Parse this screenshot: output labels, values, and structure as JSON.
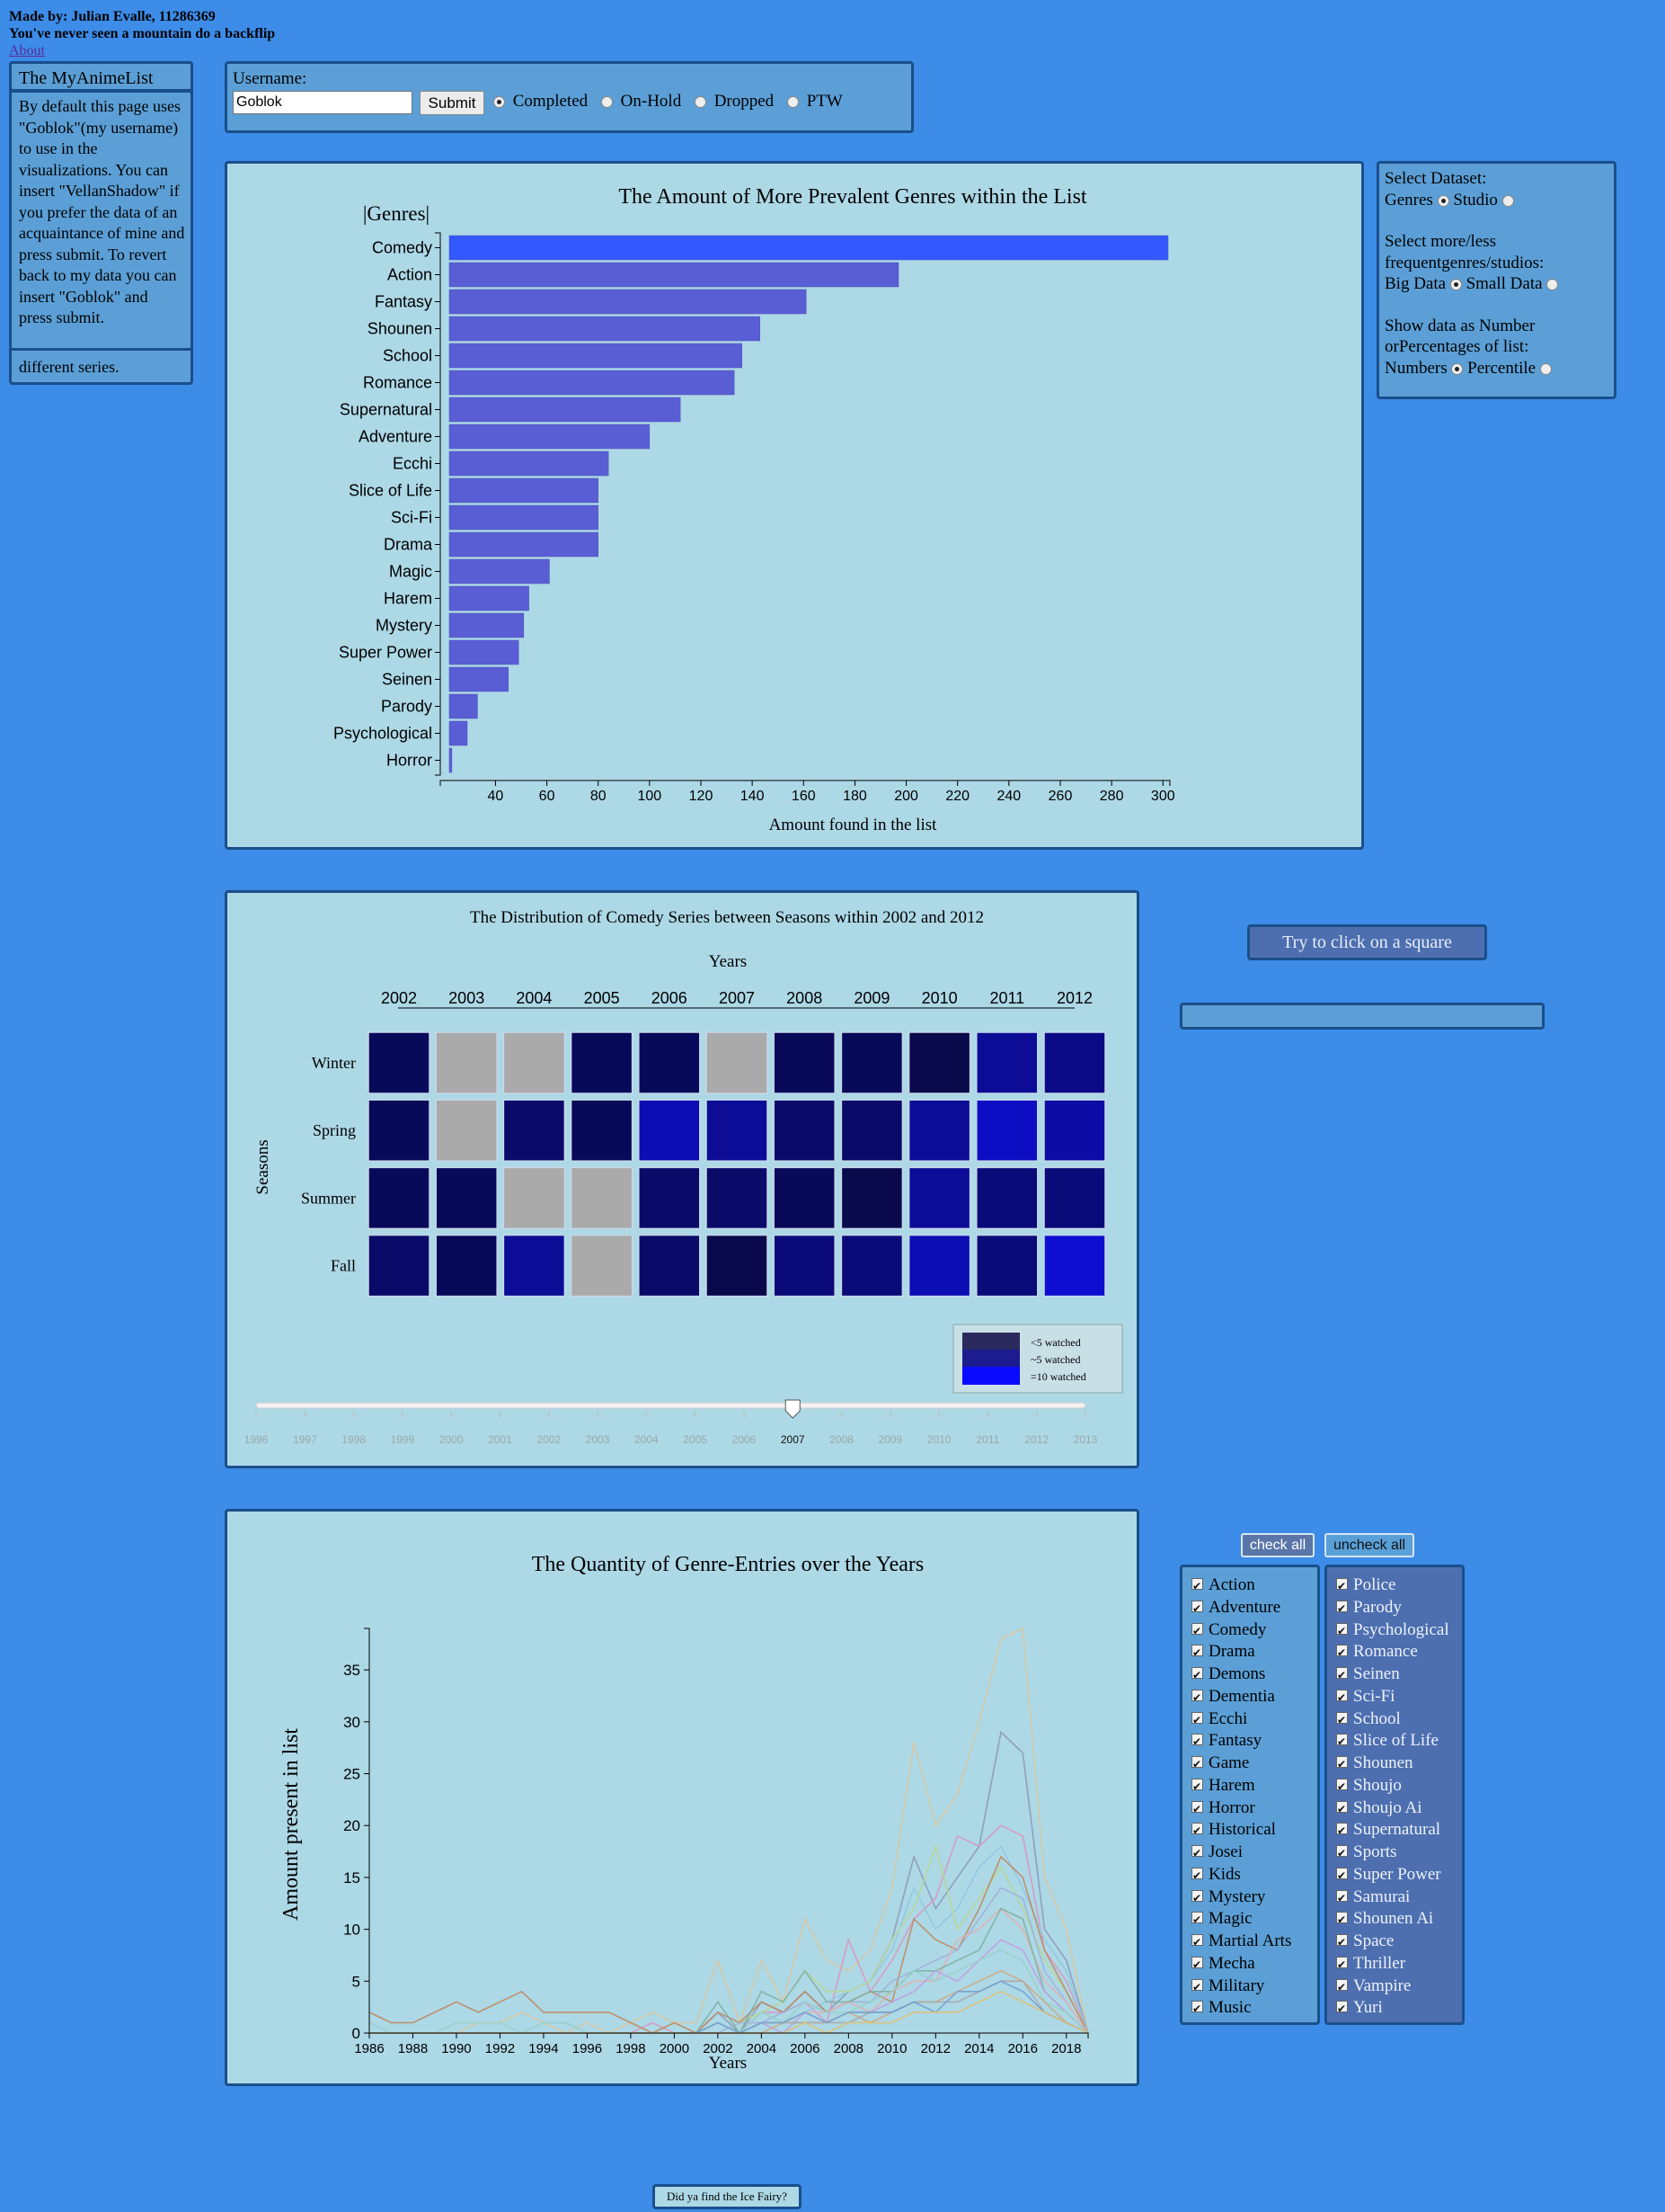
{
  "header": {
    "made_by": "Made by: Julian Evalle, 11286369",
    "tagline": "You've never seen a mountain do a backflip",
    "about_link": "About"
  },
  "about_panel": {
    "title": "The MyAnimeList",
    "text": "By default this page uses \"Goblok\"(my username) to use in the visualizations. You can insert \"VellanShadow\" if you prefer the data of an acquaintance of mine and press submit. To revert back to my data you can insert \"Goblok\" and press submit.",
    "tail": "different series."
  },
  "user_form": {
    "label": "Username:",
    "value": "Goblok",
    "submit": "Submit",
    "options": [
      {
        "label": "Completed",
        "checked": true
      },
      {
        "label": "On-Hold",
        "checked": false
      },
      {
        "label": "Dropped",
        "checked": false
      },
      {
        "label": "PTW",
        "checked": false
      }
    ]
  },
  "settings": {
    "dataset_label": "Select Dataset:",
    "genres": "Genres",
    "studio": "Studio",
    "freq_label_1": "Select more/less",
    "freq_label_2": "frequentgenres/studios:",
    "big": "Big Data",
    "small": "Small Data",
    "show_label_1": "Show data as Number",
    "show_label_2": "orPercentages of list:",
    "numbers": "Numbers",
    "percentile": "Percentile"
  },
  "bar_chart": {
    "chart_data": {
      "type": "bar",
      "orientation": "horizontal",
      "title": "The Amount of More Prevalent Genres within the List",
      "ylabel": "|Genres|",
      "xlabel": "Amount found in the list",
      "categories": [
        "Comedy",
        "Action",
        "Fantasy",
        "Shounen",
        "School",
        "Romance",
        "Supernatural",
        "Adventure",
        "Ecchi",
        "Slice of Life",
        "Sci-Fi",
        "Drama",
        "Magic",
        "Harem",
        "Mystery",
        "Super Power",
        "Seinen",
        "Parody",
        "Psychological",
        "Horror"
      ],
      "values": [
        302,
        197,
        161,
        143,
        136,
        133,
        112,
        100,
        84,
        80,
        80,
        80,
        61,
        53,
        51,
        49,
        45,
        33,
        29,
        23
      ],
      "xlim": [
        22,
        302
      ],
      "xticks": [
        40,
        60,
        80,
        100,
        120,
        140,
        160,
        180,
        200,
        220,
        240,
        260,
        280,
        300
      ],
      "highlight_color": "#3358ff",
      "bar_color": "#5a5ed4"
    }
  },
  "heatmap": {
    "chart_data": {
      "type": "heatmap",
      "title": "The Distribution of Comedy Series between Seasons within 2002 and 2012",
      "xlabel": "Years",
      "ylabel": "Seasons",
      "x": [
        "2002",
        "2003",
        "2004",
        "2005",
        "2006",
        "2007",
        "2008",
        "2009",
        "2010",
        "2011",
        "2012"
      ],
      "y": [
        "Winter",
        "Spring",
        "Summer",
        "Fall"
      ],
      "values": [
        [
          2,
          null,
          null,
          2,
          2,
          null,
          2,
          2,
          1,
          6,
          5
        ],
        [
          2,
          null,
          3,
          2,
          8,
          6,
          3,
          3,
          6,
          9,
          7
        ],
        [
          2,
          2,
          null,
          null,
          3,
          3,
          2,
          1,
          6,
          4,
          4
        ],
        [
          3,
          2,
          6,
          null,
          3,
          1,
          4,
          4,
          8,
          4,
          10
        ]
      ],
      "missing_color": "#aaaaaa",
      "legend": [
        "<5 watched",
        "~5 watched",
        "=10 watched"
      ],
      "legend_colors": [
        "#2a2a5e",
        "#1c1c90",
        "#0a0aff"
      ]
    },
    "slider": {
      "years": [
        "1996",
        "1997",
        "1998",
        "1999",
        "2000",
        "2001",
        "2002",
        "2003",
        "2004",
        "2005",
        "2006",
        "2007",
        "2008",
        "2009",
        "2010",
        "2011",
        "2012",
        "2013"
      ],
      "selected": "2007"
    },
    "click_button": "Try to click on a square",
    "info_box": ""
  },
  "line_chart": {
    "chart_data": {
      "type": "line",
      "title": "The Quantity of Genre-Entries over the Years",
      "xlabel": "Years",
      "ylabel": "Amount present in list",
      "x": [
        1986,
        1987,
        1988,
        1989,
        1990,
        1991,
        1992,
        1993,
        1994,
        1995,
        1996,
        1997,
        1998,
        1999,
        2000,
        2001,
        2002,
        2003,
        2004,
        2005,
        2006,
        2007,
        2008,
        2009,
        2010,
        2011,
        2012,
        2013,
        2014,
        2015,
        2016,
        2017,
        2018,
        2019
      ],
      "xlim": [
        1986,
        2019
      ],
      "ylim": [
        0,
        39
      ],
      "xticks": [
        1986,
        1988,
        1990,
        1992,
        1994,
        1996,
        1998,
        2000,
        2002,
        2004,
        2006,
        2008,
        2010,
        2012,
        2014,
        2016,
        2018
      ],
      "yticks": [
        0,
        5,
        10,
        15,
        20,
        25,
        30,
        35
      ],
      "series": [
        {
          "color": "#d9c8a0",
          "values": [
            0,
            0,
            0,
            0,
            0,
            1,
            1,
            2,
            1,
            0,
            1,
            0,
            1,
            2,
            1,
            1,
            7,
            1,
            7,
            3,
            11,
            7,
            6,
            8,
            14,
            28,
            20,
            23,
            30,
            38,
            39,
            15,
            10,
            0
          ]
        },
        {
          "color": "#8c9ab8",
          "values": [
            0,
            0,
            0,
            0,
            0,
            0,
            0,
            0,
            0,
            0,
            0,
            0,
            0,
            0,
            0,
            0,
            2,
            0,
            3,
            2,
            4,
            2,
            4,
            5,
            9,
            17,
            12,
            15,
            18,
            29,
            27,
            10,
            7,
            0
          ]
        },
        {
          "color": "#d898c0",
          "values": [
            0,
            0,
            0,
            0,
            0,
            0,
            0,
            0,
            0,
            0,
            0,
            0,
            0,
            1,
            0,
            0,
            1,
            0,
            2,
            2,
            3,
            1,
            9,
            4,
            7,
            11,
            13,
            19,
            18,
            20,
            19,
            8,
            5,
            0
          ]
        },
        {
          "color": "#90c8e0",
          "values": [
            0,
            0,
            0,
            0,
            0,
            0,
            0,
            0,
            1,
            1,
            0,
            0,
            0,
            0,
            0,
            0,
            1,
            0,
            2,
            1,
            2,
            3,
            4,
            5,
            8,
            14,
            10,
            12,
            16,
            18,
            14,
            9,
            6,
            0
          ]
        },
        {
          "color": "#b8d890",
          "values": [
            0,
            0,
            0,
            0,
            0,
            0,
            0,
            0,
            0,
            0,
            0,
            0,
            0,
            0,
            1,
            0,
            0,
            1,
            2,
            3,
            6,
            4,
            4,
            5,
            9,
            12,
            18,
            10,
            13,
            16,
            12,
            7,
            4,
            0
          ]
        },
        {
          "color": "#c08860",
          "values": [
            2,
            1,
            1,
            2,
            3,
            2,
            3,
            4,
            2,
            2,
            2,
            2,
            1,
            0,
            1,
            0,
            2,
            1,
            3,
            2,
            4,
            2,
            3,
            4,
            3,
            11,
            9,
            8,
            12,
            17,
            15,
            8,
            4,
            0
          ]
        },
        {
          "color": "#a0b0d8",
          "values": [
            0,
            0,
            0,
            0,
            0,
            0,
            0,
            0,
            0,
            0,
            0,
            0,
            0,
            0,
            0,
            0,
            0,
            1,
            1,
            2,
            3,
            2,
            3,
            3,
            5,
            6,
            7,
            8,
            11,
            14,
            13,
            6,
            3,
            0
          ]
        },
        {
          "color": "#e0b0b0",
          "values": [
            0,
            0,
            0,
            0,
            0,
            0,
            0,
            0,
            0,
            0,
            0,
            0,
            0,
            0,
            0,
            0,
            1,
            0,
            1,
            1,
            2,
            2,
            3,
            2,
            4,
            5,
            5,
            9,
            10,
            12,
            10,
            5,
            3,
            0
          ]
        },
        {
          "color": "#80b0a0",
          "values": [
            0,
            0,
            0,
            0,
            0,
            0,
            0,
            0,
            0,
            0,
            0,
            0,
            0,
            0,
            0,
            0,
            3,
            0,
            4,
            3,
            6,
            3,
            3,
            4,
            4,
            6,
            6,
            7,
            8,
            12,
            11,
            4,
            2,
            0
          ]
        },
        {
          "color": "#c0a0e0",
          "values": [
            0,
            0,
            0,
            0,
            0,
            0,
            0,
            0,
            0,
            0,
            0,
            0,
            0,
            0,
            0,
            0,
            0,
            0,
            1,
            0,
            2,
            1,
            2,
            2,
            3,
            4,
            6,
            5,
            7,
            9,
            8,
            4,
            2,
            0
          ]
        },
        {
          "color": "#98d0c8",
          "values": [
            1,
            0,
            0,
            0,
            1,
            1,
            1,
            0,
            1,
            1,
            0,
            0,
            0,
            0,
            0,
            0,
            1,
            0,
            2,
            1,
            3,
            2,
            2,
            3,
            4,
            6,
            5,
            6,
            7,
            8,
            7,
            3,
            2,
            0
          ]
        },
        {
          "color": "#d0a880",
          "values": [
            0,
            0,
            0,
            0,
            0,
            0,
            0,
            0,
            0,
            0,
            0,
            0,
            0,
            0,
            0,
            0,
            0,
            0,
            0,
            1,
            1,
            1,
            2,
            1,
            2,
            3,
            3,
            4,
            5,
            6,
            5,
            3,
            1,
            0
          ]
        },
        {
          "color": "#a8a8a8",
          "values": [
            0,
            0,
            0,
            0,
            0,
            0,
            0,
            0,
            0,
            0,
            0,
            0,
            0,
            0,
            0,
            0,
            0,
            0,
            1,
            1,
            1,
            1,
            1,
            2,
            2,
            3,
            3,
            3,
            4,
            5,
            5,
            2,
            1,
            0
          ]
        },
        {
          "color": "#70a0d0",
          "values": [
            0,
            0,
            0,
            0,
            0,
            0,
            0,
            0,
            0,
            0,
            0,
            0,
            0,
            0,
            0,
            0,
            1,
            0,
            1,
            1,
            2,
            1,
            2,
            2,
            2,
            3,
            2,
            4,
            4,
            5,
            4,
            2,
            1,
            0
          ]
        },
        {
          "color": "#e0c070",
          "values": [
            0,
            0,
            0,
            0,
            0,
            0,
            0,
            0,
            0,
            0,
            0,
            0,
            0,
            0,
            0,
            0,
            0,
            0,
            0,
            0,
            1,
            0,
            1,
            1,
            1,
            2,
            2,
            2,
            3,
            4,
            3,
            2,
            1,
            0
          ]
        }
      ]
    },
    "check_all": "check all",
    "uncheck_all": "uncheck all",
    "genres_left": [
      "Action",
      "Adventure",
      "Comedy",
      "Drama",
      "Demons",
      "Dementia",
      "Ecchi",
      "Fantasy",
      "Game",
      "Harem",
      "Horror",
      "Historical",
      "Josei",
      "Kids",
      "Mystery",
      "Magic",
      "Martial Arts",
      "Mecha",
      "Military",
      "Music"
    ],
    "genres_right": [
      "Police",
      "Parody",
      "Psychological",
      "Romance",
      "Seinen",
      "Sci-Fi",
      "School",
      "Slice of Life",
      "Shounen",
      "Shoujo",
      "Shoujo Ai",
      "Supernatural",
      "Sports",
      "Super Power",
      "Samurai",
      "Shounen Ai",
      "Space",
      "Thriller",
      "Vampire",
      "Yuri"
    ]
  },
  "footer": {
    "easter_egg": "Did ya find the Ice Fairy?"
  }
}
